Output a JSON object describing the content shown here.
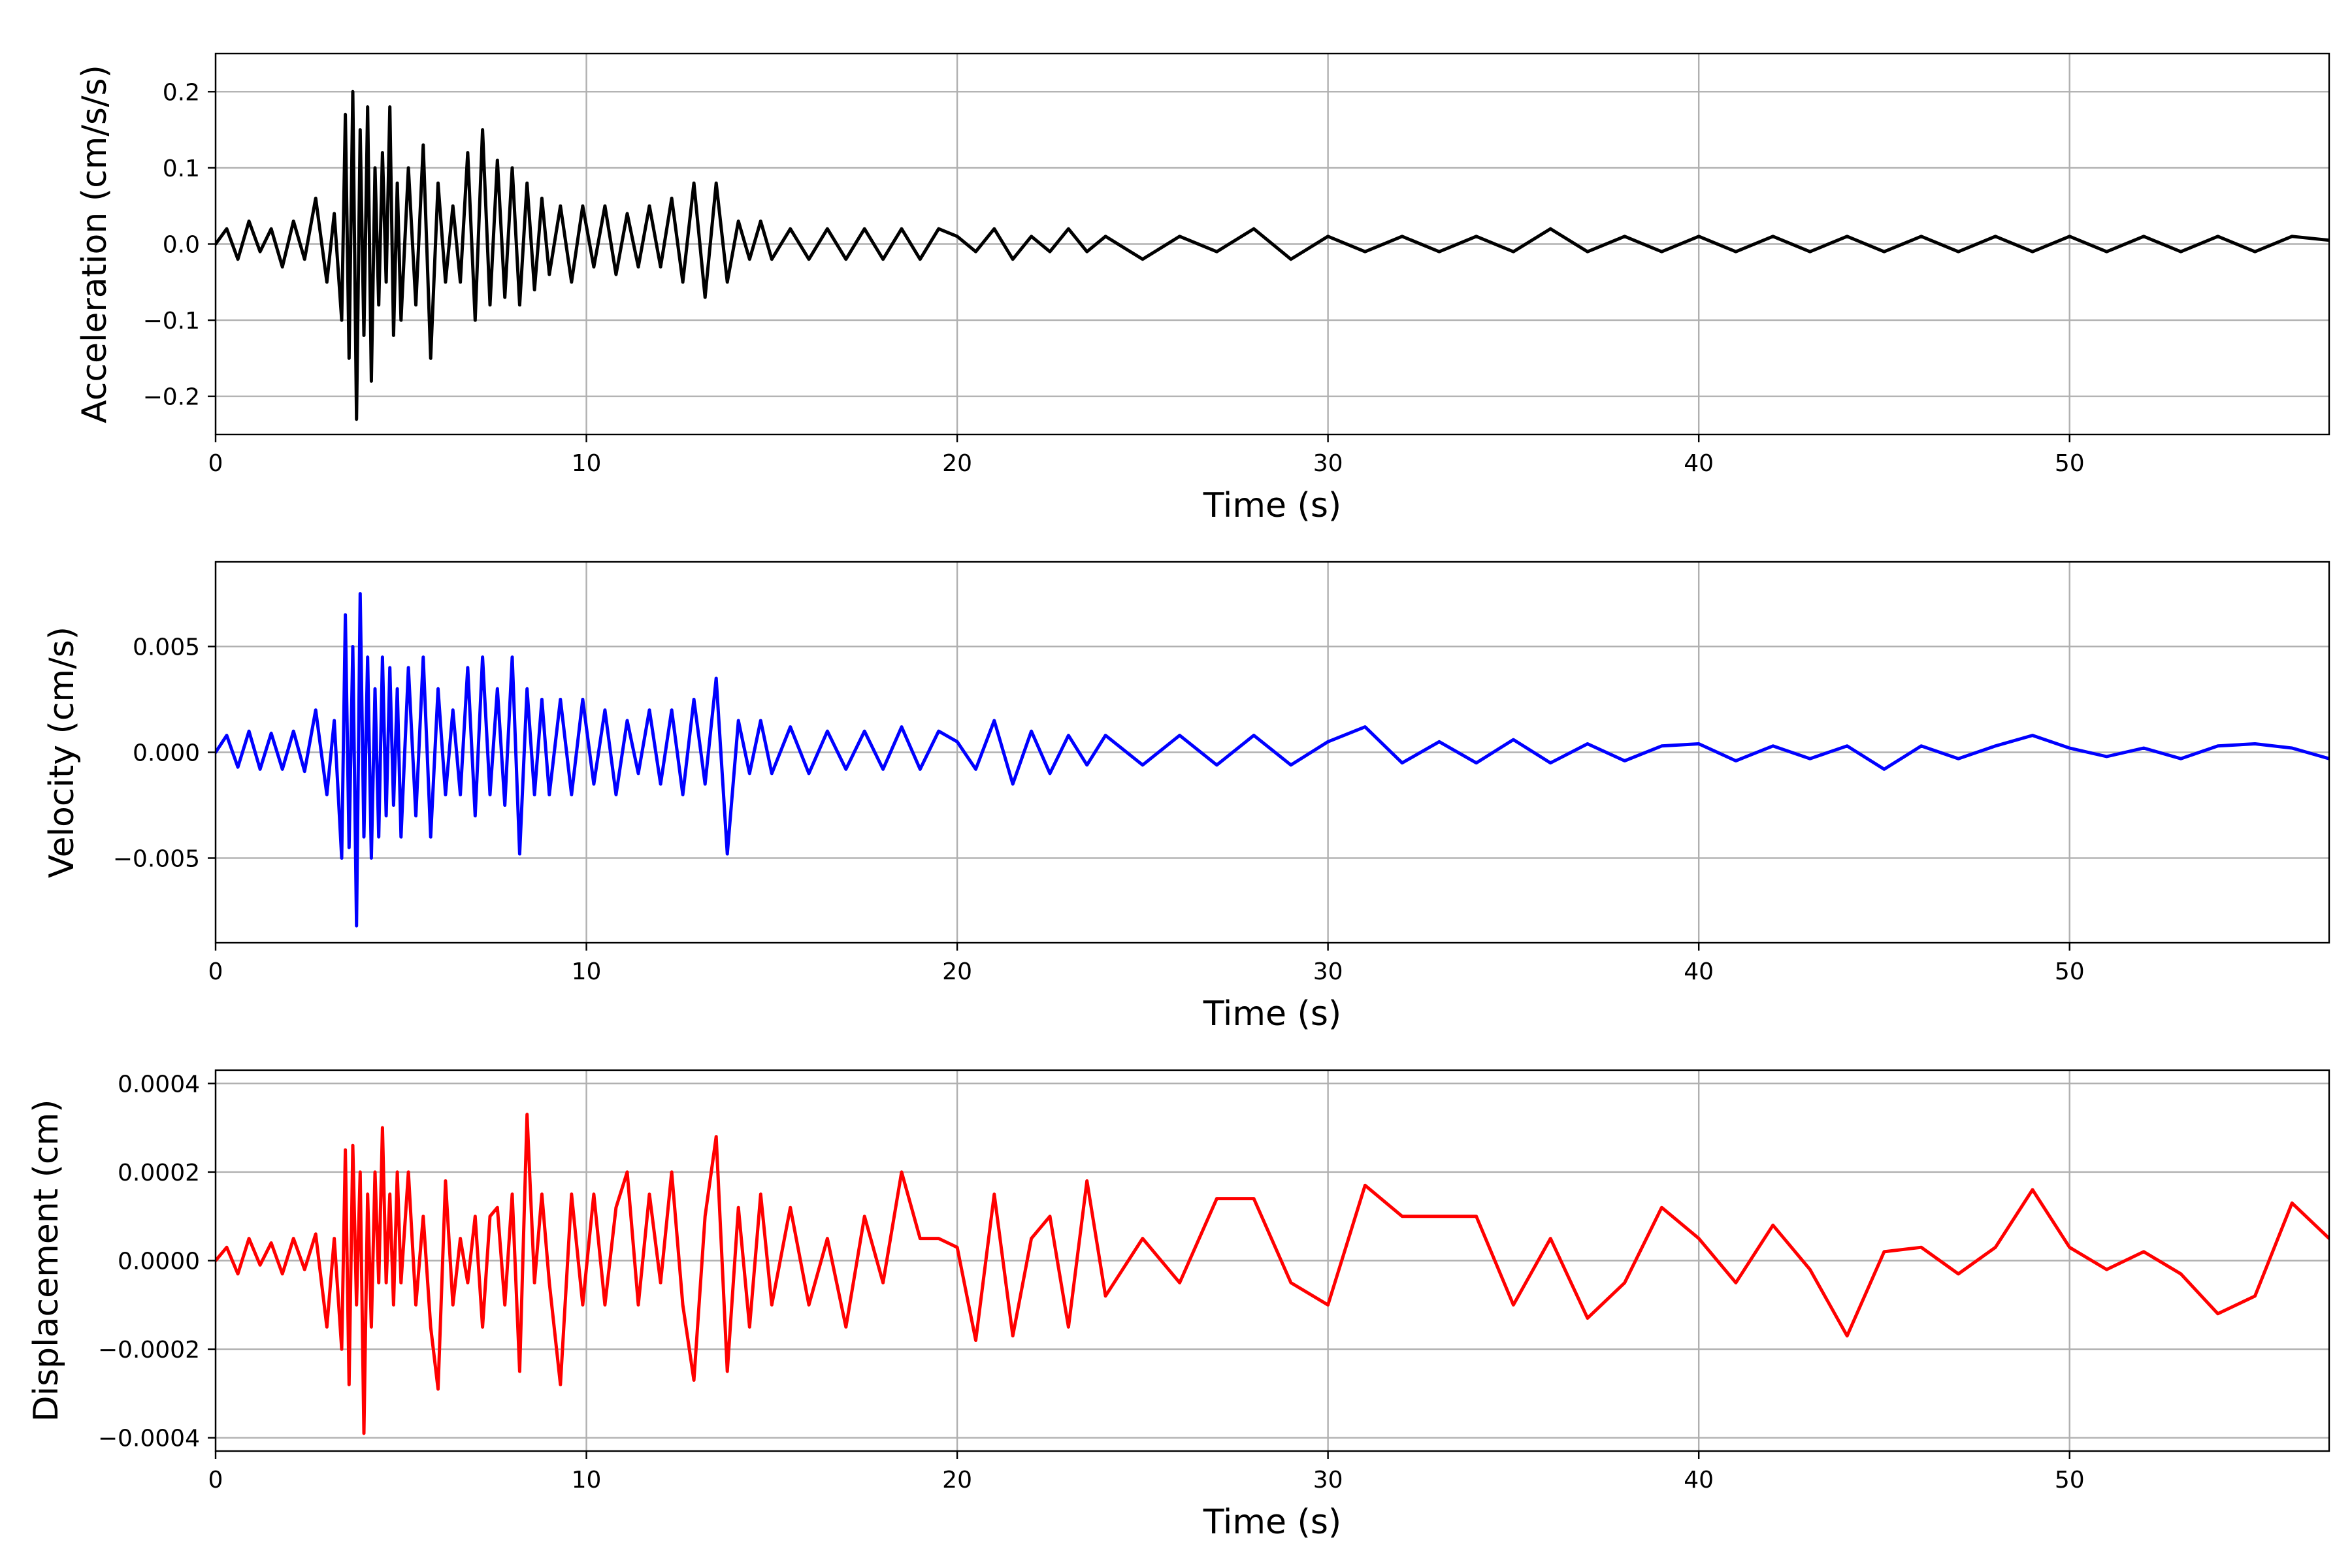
{
  "chart_data": [
    {
      "type": "line",
      "xlabel": "Time (s)",
      "ylabel": "Acceleration (cm/s/s)",
      "xlim": [
        0,
        57
      ],
      "ylim": [
        -0.25,
        0.25
      ],
      "xticks": [
        0,
        10,
        20,
        30,
        40,
        50
      ],
      "xtick_labels": [
        "0",
        "10",
        "20",
        "30",
        "40",
        "50"
      ],
      "yticks": [
        -0.2,
        -0.1,
        0.0,
        0.1,
        0.2
      ],
      "ytick_labels": [
        "−0.2",
        "−0.1",
        "0.0",
        "0.1",
        "0.2"
      ],
      "grid": true,
      "series": [
        {
          "color": "#000000",
          "x": [
            0.0,
            0.3,
            0.6,
            0.9,
            1.2,
            1.5,
            1.8,
            2.1,
            2.4,
            2.7,
            3.0,
            3.2,
            3.4,
            3.5,
            3.6,
            3.7,
            3.8,
            3.9,
            4.0,
            4.1,
            4.2,
            4.3,
            4.4,
            4.5,
            4.6,
            4.7,
            4.8,
            4.9,
            5.0,
            5.2,
            5.4,
            5.6,
            5.8,
            6.0,
            6.2,
            6.4,
            6.6,
            6.8,
            7.0,
            7.2,
            7.4,
            7.6,
            7.8,
            8.0,
            8.2,
            8.4,
            8.6,
            8.8,
            9.0,
            9.3,
            9.6,
            9.9,
            10.2,
            10.5,
            10.8,
            11.1,
            11.4,
            11.7,
            12.0,
            12.3,
            12.6,
            12.9,
            13.2,
            13.5,
            13.8,
            14.1,
            14.4,
            14.7,
            15.0,
            15.5,
            16.0,
            16.5,
            17.0,
            17.5,
            18.0,
            18.5,
            19.0,
            19.5,
            20.0,
            20.5,
            21.0,
            21.5,
            22.0,
            22.5,
            23.0,
            23.5,
            24.0,
            25.0,
            26.0,
            27.0,
            28.0,
            29.0,
            30.0,
            31.0,
            32.0,
            33.0,
            34.0,
            35.0,
            36.0,
            37.0,
            38.0,
            39.0,
            40.0,
            41.0,
            42.0,
            43.0,
            44.0,
            45.0,
            46.0,
            47.0,
            48.0,
            49.0,
            50.0,
            51.0,
            52.0,
            53.0,
            54.0,
            55.0,
            56.0,
            57.0
          ],
          "y": [
            0.0,
            0.02,
            -0.02,
            0.03,
            -0.01,
            0.02,
            -0.03,
            0.03,
            -0.02,
            0.06,
            -0.05,
            0.04,
            -0.1,
            0.17,
            -0.15,
            0.2,
            -0.23,
            0.15,
            -0.12,
            0.18,
            -0.18,
            0.1,
            -0.08,
            0.12,
            -0.05,
            0.18,
            -0.12,
            0.08,
            -0.1,
            0.1,
            -0.08,
            0.13,
            -0.15,
            0.08,
            -0.05,
            0.05,
            -0.05,
            0.12,
            -0.1,
            0.15,
            -0.08,
            0.11,
            -0.07,
            0.1,
            -0.08,
            0.08,
            -0.06,
            0.06,
            -0.04,
            0.05,
            -0.05,
            0.05,
            -0.03,
            0.05,
            -0.04,
            0.04,
            -0.03,
            0.05,
            -0.03,
            0.06,
            -0.05,
            0.08,
            -0.07,
            0.08,
            -0.05,
            0.03,
            -0.02,
            0.03,
            -0.02,
            0.02,
            -0.02,
            0.02,
            -0.02,
            0.02,
            -0.02,
            0.02,
            -0.02,
            0.02,
            0.01,
            -0.01,
            0.02,
            -0.02,
            0.01,
            -0.01,
            0.02,
            -0.01,
            0.01,
            -0.02,
            0.01,
            -0.01,
            0.02,
            -0.02,
            0.01,
            -0.01,
            0.01,
            -0.01,
            0.01,
            -0.01,
            0.02,
            -0.01,
            0.01,
            -0.01,
            0.01,
            -0.01,
            0.01,
            -0.01,
            0.01,
            -0.01,
            0.01,
            -0.01,
            0.01,
            -0.01,
            0.01,
            -0.01,
            0.01,
            -0.01,
            0.01,
            -0.01,
            0.01,
            0.005
          ]
        }
      ]
    },
    {
      "type": "line",
      "xlabel": "Time (s)",
      "ylabel": "Velocity (cm/s)",
      "xlim": [
        0,
        57
      ],
      "ylim": [
        -0.009,
        0.009
      ],
      "xticks": [
        0,
        10,
        20,
        30,
        40,
        50
      ],
      "xtick_labels": [
        "0",
        "10",
        "20",
        "30",
        "40",
        "50"
      ],
      "yticks": [
        -0.005,
        0.0,
        0.005
      ],
      "ytick_labels": [
        "−0.005",
        "0.000",
        "0.005"
      ],
      "grid": true,
      "series": [
        {
          "color": "#0000ff",
          "x": [
            0.0,
            0.3,
            0.6,
            0.9,
            1.2,
            1.5,
            1.8,
            2.1,
            2.4,
            2.7,
            3.0,
            3.2,
            3.4,
            3.5,
            3.6,
            3.7,
            3.8,
            3.9,
            4.0,
            4.1,
            4.2,
            4.3,
            4.4,
            4.5,
            4.6,
            4.7,
            4.8,
            4.9,
            5.0,
            5.2,
            5.4,
            5.6,
            5.8,
            6.0,
            6.2,
            6.4,
            6.6,
            6.8,
            7.0,
            7.2,
            7.4,
            7.6,
            7.8,
            8.0,
            8.2,
            8.4,
            8.6,
            8.8,
            9.0,
            9.3,
            9.6,
            9.9,
            10.2,
            10.5,
            10.8,
            11.1,
            11.4,
            11.7,
            12.0,
            12.3,
            12.6,
            12.9,
            13.2,
            13.5,
            13.8,
            14.1,
            14.4,
            14.7,
            15.0,
            15.5,
            16.0,
            16.5,
            17.0,
            17.5,
            18.0,
            18.5,
            19.0,
            19.5,
            20.0,
            20.5,
            21.0,
            21.5,
            22.0,
            22.5,
            23.0,
            23.5,
            24.0,
            25.0,
            26.0,
            27.0,
            28.0,
            29.0,
            30.0,
            31.0,
            32.0,
            33.0,
            34.0,
            35.0,
            36.0,
            37.0,
            38.0,
            39.0,
            40.0,
            41.0,
            42.0,
            43.0,
            44.0,
            45.0,
            46.0,
            47.0,
            48.0,
            49.0,
            50.0,
            51.0,
            52.0,
            53.0,
            54.0,
            55.0,
            56.0,
            57.0
          ],
          "y": [
            0.0,
            0.0008,
            -0.0007,
            0.001,
            -0.0008,
            0.0009,
            -0.0008,
            0.001,
            -0.0009,
            0.002,
            -0.002,
            0.0015,
            -0.005,
            0.0065,
            -0.0045,
            0.005,
            -0.0082,
            0.0075,
            -0.004,
            0.0045,
            -0.005,
            0.003,
            -0.004,
            0.0045,
            -0.003,
            0.004,
            -0.0025,
            0.003,
            -0.004,
            0.004,
            -0.003,
            0.0045,
            -0.004,
            0.003,
            -0.002,
            0.002,
            -0.002,
            0.004,
            -0.003,
            0.0045,
            -0.002,
            0.003,
            -0.0025,
            0.0045,
            -0.0048,
            0.003,
            -0.002,
            0.0025,
            -0.002,
            0.0025,
            -0.002,
            0.0025,
            -0.0015,
            0.002,
            -0.002,
            0.0015,
            -0.001,
            0.002,
            -0.0015,
            0.002,
            -0.002,
            0.0025,
            -0.0015,
            0.0035,
            -0.0048,
            0.0015,
            -0.001,
            0.0015,
            -0.001,
            0.0012,
            -0.001,
            0.001,
            -0.0008,
            0.001,
            -0.0008,
            0.0012,
            -0.0008,
            0.001,
            0.0005,
            -0.0008,
            0.0015,
            -0.0015,
            0.001,
            -0.001,
            0.0008,
            -0.0006,
            0.0008,
            -0.0006,
            0.0008,
            -0.0006,
            0.0008,
            -0.0006,
            0.0005,
            0.0012,
            -0.0005,
            0.0005,
            -0.0005,
            0.0006,
            -0.0005,
            0.0004,
            -0.0004,
            0.0003,
            0.0004,
            -0.0004,
            0.0003,
            -0.0003,
            0.0003,
            -0.0008,
            0.0003,
            -0.0003,
            0.0003,
            0.0008,
            0.0002,
            -0.0002,
            0.0002,
            -0.0003,
            0.0003,
            0.0004,
            0.0002,
            -0.0003
          ]
        }
      ]
    },
    {
      "type": "line",
      "xlabel": "Time (s)",
      "ylabel": "Displacement (cm)",
      "xlim": [
        0,
        57
      ],
      "ylim": [
        -0.00043,
        0.00043
      ],
      "xticks": [
        0,
        10,
        20,
        30,
        40,
        50
      ],
      "xtick_labels": [
        "0",
        "10",
        "20",
        "30",
        "40",
        "50"
      ],
      "yticks": [
        -0.0004,
        -0.0002,
        0.0,
        0.0002,
        0.0004
      ],
      "ytick_labels": [
        "−0.0004",
        "−0.0002",
        "0.0000",
        "0.0002",
        "0.0004"
      ],
      "grid": true,
      "series": [
        {
          "color": "#ff0000",
          "x": [
            0.0,
            0.3,
            0.6,
            0.9,
            1.2,
            1.5,
            1.8,
            2.1,
            2.4,
            2.7,
            3.0,
            3.2,
            3.4,
            3.5,
            3.6,
            3.7,
            3.8,
            3.9,
            4.0,
            4.1,
            4.2,
            4.3,
            4.4,
            4.5,
            4.6,
            4.7,
            4.8,
            4.9,
            5.0,
            5.2,
            5.4,
            5.6,
            5.8,
            6.0,
            6.2,
            6.4,
            6.6,
            6.8,
            7.0,
            7.2,
            7.4,
            7.6,
            7.8,
            8.0,
            8.2,
            8.4,
            8.6,
            8.8,
            9.0,
            9.3,
            9.6,
            9.9,
            10.2,
            10.5,
            10.8,
            11.1,
            11.4,
            11.7,
            12.0,
            12.3,
            12.6,
            12.9,
            13.2,
            13.5,
            13.8,
            14.1,
            14.4,
            14.7,
            15.0,
            15.5,
            16.0,
            16.5,
            17.0,
            17.5,
            18.0,
            18.5,
            19.0,
            19.5,
            20.0,
            20.5,
            21.0,
            21.5,
            22.0,
            22.5,
            23.0,
            23.5,
            24.0,
            25.0,
            26.0,
            27.0,
            28.0,
            29.0,
            30.0,
            31.0,
            32.0,
            33.0,
            34.0,
            35.0,
            36.0,
            37.0,
            38.0,
            39.0,
            40.0,
            41.0,
            42.0,
            43.0,
            44.0,
            45.0,
            46.0,
            47.0,
            48.0,
            49.0,
            50.0,
            51.0,
            52.0,
            53.0,
            54.0,
            55.0,
            56.0,
            57.0
          ],
          "y": [
            0.0,
            3e-05,
            -3e-05,
            5e-05,
            -1e-05,
            4e-05,
            -3e-05,
            5e-05,
            -2e-05,
            6e-05,
            -0.00015,
            5e-05,
            -0.0002,
            0.00025,
            -0.00028,
            0.00026,
            -0.0001,
            0.0002,
            -0.00039,
            0.00015,
            -0.00015,
            0.0002,
            -5e-05,
            0.0003,
            -5e-05,
            0.00015,
            -0.0001,
            0.0002,
            -5e-05,
            0.0002,
            -0.0001,
            0.0001,
            -0.00015,
            -0.00029,
            0.00018,
            -0.0001,
            5e-05,
            -5e-05,
            0.0001,
            -0.00015,
            0.0001,
            0.00012,
            -0.0001,
            0.00015,
            -0.00025,
            0.00033,
            -5e-05,
            0.00015,
            -5e-05,
            -0.00028,
            0.00015,
            -0.0001,
            0.00015,
            -0.0001,
            0.00012,
            0.0002,
            -0.0001,
            0.00015,
            -5e-05,
            0.0002,
            -0.0001,
            -0.00027,
            0.0001,
            0.00028,
            -0.00025,
            0.00012,
            -0.00015,
            0.00015,
            -0.0001,
            0.00012,
            -0.0001,
            5e-05,
            -0.00015,
            0.0001,
            -5e-05,
            0.0002,
            5e-05,
            5e-05,
            3e-05,
            -0.00018,
            0.00015,
            -0.00017,
            5e-05,
            0.0001,
            -0.00015,
            0.00018,
            -8e-05,
            5e-05,
            -5e-05,
            0.00014,
            0.00014,
            -5e-05,
            -0.0001,
            0.00017,
            0.0001,
            0.0001,
            0.0001,
            -0.0001,
            5e-05,
            -0.00013,
            -5e-05,
            0.00012,
            5e-05,
            -5e-05,
            8e-05,
            -2e-05,
            -0.00017,
            2e-05,
            3e-05,
            -3e-05,
            3e-05,
            0.00016,
            3e-05,
            -2e-05,
            2e-05,
            -3e-05,
            -0.00012,
            -8e-05,
            0.00013,
            5e-05
          ]
        }
      ]
    }
  ]
}
